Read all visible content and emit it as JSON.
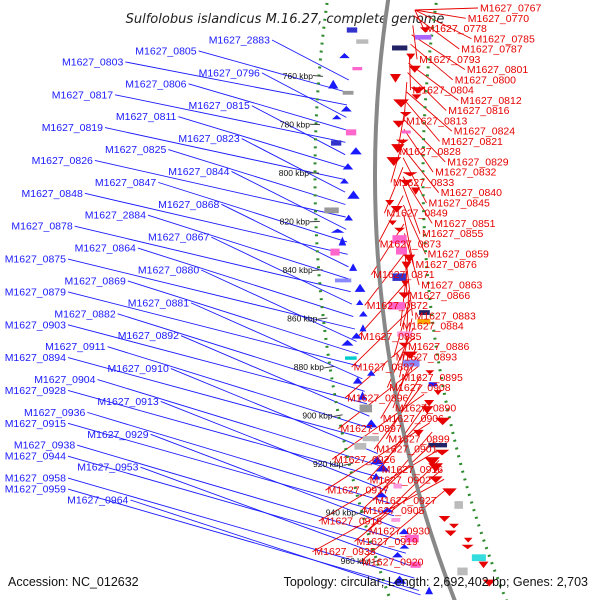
{
  "title": "Sulfolobus islandicus M.16.27, complete genome",
  "footer": {
    "accession": "Accession: NC_012632",
    "summary": "Topology: circular; Length: 2,692,402 bp; Genes: 2,703"
  },
  "colors": {
    "forward_strand": "#1a1aff",
    "reverse_strand": "#e60000",
    "ruler_dot": "#2e8b2e",
    "backbone": "#888888"
  },
  "kbp_ticks": [
    "760 kbp",
    "780 kbp",
    "800 kbp",
    "820 kbp",
    "840 kbp",
    "860 kbp",
    "880 kbp",
    "900 kbp",
    "920 kbp",
    "940 kbp",
    "960 kbp"
  ],
  "left_labels": [
    "M1627_2883",
    "M1627_0805",
    "M1627_0803",
    "M1627_0796",
    "M1627_0806",
    "M1627_0817",
    "M1627_0815",
    "M1627_0811",
    "M1627_0819",
    "M1627_0823",
    "M1627_0825",
    "M1627_0826",
    "M1627_0844",
    "M1627_0847",
    "M1627_0848",
    "M1627_0868",
    "M1627_2884",
    "M1627_0878",
    "M1627_0867",
    "M1627_0864",
    "M1627_0875",
    "M1627_0880",
    "M1627_0869",
    "M1627_0879",
    "M1627_0881",
    "M1627_0882",
    "M1627_0903",
    "M1627_0892",
    "M1627_0911",
    "M1627_0894",
    "M1627_0910",
    "M1627_0904",
    "M1627_0928",
    "M1627_0913",
    "M1627_0936",
    "M1627_0915",
    "M1627_0929",
    "M1627_0938",
    "M1627_0944",
    "M1627_0953",
    "M1627_0958",
    "M1627_0959",
    "M1627_0964"
  ],
  "right_labels": [
    "M1627_0767",
    "M1627_0770",
    "M1627_0778",
    "M1627_0785",
    "M1627_0787",
    "M1627_0793",
    "M1627_0801",
    "M1627_0800",
    "M1627_0804",
    "M1627_0812",
    "M1627_0816",
    "M1627_0813",
    "M1627_0824",
    "M1627_0821",
    "M1627_0828",
    "M1627_0829",
    "M1627_0832",
    "M1627_0833",
    "M1627_0840",
    "M1627_0845",
    "M1627_0849",
    "M1627_0851",
    "M1627_0855",
    "M1627_0873",
    "M1627_0859",
    "M1627_0876",
    "M1627_0871",
    "M1627_0863",
    "M1627_0866",
    "M1627_0872",
    "M1627_0883",
    "M1627_0884",
    "M1627_0885",
    "M1627_0886",
    "M1627_0893",
    "M1627_0887",
    "M1627_0895",
    "M1627_0908",
    "M1627_0896",
    "M1627_0890",
    "M1627_0906",
    "M1627_0897",
    "M1627_0899",
    "M1627_0901",
    "M1627_0926",
    "M1627_0916",
    "M1627_0902",
    "M1627_0917",
    "M1627_0927",
    "M1627_0905",
    "M1627_0918",
    "M1627_0930",
    "M1627_0919",
    "M1627_0935",
    "M1627_0920"
  ]
}
